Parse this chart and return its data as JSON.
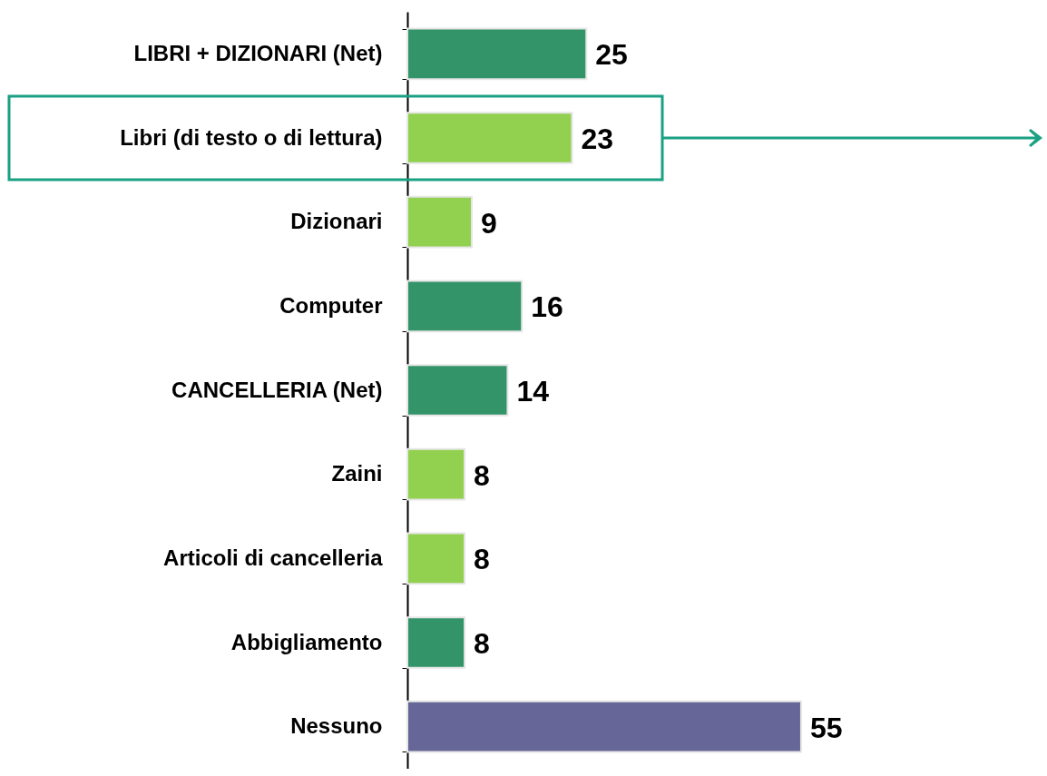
{
  "chart_data": {
    "type": "bar",
    "orientation": "horizontal",
    "categories": [
      "LIBRI + DIZIONARI (Net)",
      "Libri (di testo o di lettura)",
      "Dizionari",
      "Computer",
      "CANCELLERIA (Net)",
      "Zaini",
      "Articoli di cancelleria",
      "Abbigliamento",
      "Nessuno"
    ],
    "values": [
      25,
      23,
      9,
      16,
      14,
      8,
      8,
      8,
      55
    ],
    "colors": [
      "#339469",
      "#92d050",
      "#92d050",
      "#339469",
      "#339469",
      "#92d050",
      "#92d050",
      "#339469",
      "#666699"
    ],
    "data_labels": true
  }
}
